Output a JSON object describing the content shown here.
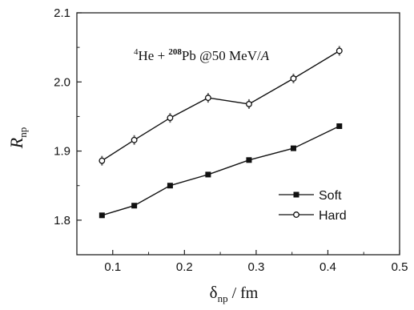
{
  "chart_data": {
    "type": "line",
    "xlabel": {
      "symbol": "δ",
      "sub": "np",
      "unit": " / fm"
    },
    "ylabel": {
      "symbol": "R",
      "sub": "np"
    },
    "xlim": [
      0.05,
      0.5
    ],
    "ylim": [
      1.75,
      2.1
    ],
    "xticks": [
      {
        "value": 0.1,
        "label": "0.1"
      },
      {
        "value": 0.2,
        "label": "0.2"
      },
      {
        "value": 0.3,
        "label": "0.3"
      },
      {
        "value": 0.4,
        "label": "0.4"
      },
      {
        "value": 0.5,
        "label": "0.5"
      }
    ],
    "yticks": [
      {
        "value": 1.8,
        "label": "1.8"
      },
      {
        "value": 1.9,
        "label": "1.9"
      },
      {
        "value": 2.0,
        "label": "2.0"
      },
      {
        "value": 2.1,
        "label": "2.1"
      }
    ],
    "annotation": {
      "mass1": "4",
      "el1": "He + ",
      "mass2": "208",
      "el2": "Pb @50 MeV/",
      "unit_italic": "A"
    },
    "legend_position": "bottom-right",
    "series": [
      {
        "name": "Soft",
        "marker": "filled-square",
        "x": [
          0.085,
          0.13,
          0.18,
          0.233,
          0.29,
          0.352,
          0.416
        ],
        "y": [
          1.807,
          1.821,
          1.85,
          1.866,
          1.887,
          1.904,
          1.936
        ]
      },
      {
        "name": "Hard",
        "marker": "open-circle",
        "x": [
          0.085,
          0.13,
          0.18,
          0.233,
          0.29,
          0.352,
          0.416
        ],
        "y": [
          1.886,
          1.916,
          1.948,
          1.977,
          1.968,
          2.005,
          2.045
        ]
      }
    ]
  }
}
